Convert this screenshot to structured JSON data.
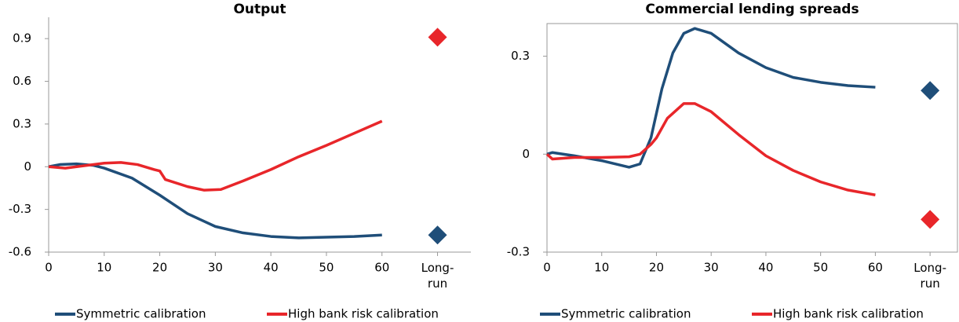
{
  "chart_data": [
    {
      "type": "line",
      "title": "Output",
      "xlim": [
        0,
        76
      ],
      "xticks": [
        0,
        10,
        20,
        30,
        40,
        50,
        60,
        {
          "value": 70,
          "label": "Long-run"
        }
      ],
      "ylim": [
        -0.6,
        1.05
      ],
      "yticks": [
        -0.6,
        -0.3,
        0,
        0.3,
        0.6,
        0.9
      ],
      "series": [
        {
          "name": "Symmetric calibration",
          "color": "#1f4e79",
          "x": [
            0,
            2,
            5,
            8,
            10,
            15,
            20,
            25,
            30,
            35,
            40,
            45,
            50,
            55,
            60
          ],
          "values": [
            0,
            0.015,
            0.02,
            0.01,
            -0.01,
            -0.08,
            -0.2,
            -0.33,
            -0.42,
            -0.465,
            -0.49,
            -0.5,
            -0.495,
            -0.49,
            -0.48
          ],
          "long_run": {
            "x": 70,
            "value": -0.48
          }
        },
        {
          "name": "High bank risk calibration",
          "color": "#e8262a",
          "x": [
            0,
            3,
            6,
            10,
            13,
            16,
            19,
            20,
            21,
            25,
            28,
            31,
            35,
            40,
            45,
            50,
            55,
            60
          ],
          "values": [
            0,
            -0.01,
            0.005,
            0.025,
            0.03,
            0.015,
            -0.02,
            -0.03,
            -0.09,
            -0.14,
            -0.165,
            -0.16,
            -0.1,
            -0.02,
            0.07,
            0.15,
            0.235,
            0.32
          ],
          "long_run": {
            "x": 70,
            "value": 0.91
          }
        }
      ]
    },
    {
      "type": "line",
      "title": "Commercial lending spreads",
      "xlim": [
        0,
        75
      ],
      "xticks": [
        0,
        10,
        20,
        30,
        40,
        50,
        60,
        {
          "value": 70,
          "label": "Long-run"
        }
      ],
      "ylim": [
        -0.3,
        0.4
      ],
      "yticks": [
        -0.3,
        0,
        0.3
      ],
      "series": [
        {
          "name": "Symmetric calibration",
          "color": "#1f4e79",
          "x": [
            0,
            1,
            5,
            10,
            15,
            17,
            19,
            21,
            23,
            25,
            27,
            30,
            35,
            40,
            45,
            50,
            55,
            60
          ],
          "values": [
            0,
            0.005,
            -0.005,
            -0.02,
            -0.04,
            -0.03,
            0.05,
            0.2,
            0.31,
            0.37,
            0.385,
            0.37,
            0.31,
            0.265,
            0.235,
            0.22,
            0.21,
            0.205
          ],
          "long_run": {
            "x": 70,
            "value": 0.195
          }
        },
        {
          "name": "High bank risk calibration",
          "color": "#e8262a",
          "x": [
            0,
            1,
            5,
            10,
            15,
            17,
            19,
            20,
            22,
            25,
            27,
            30,
            35,
            40,
            45,
            50,
            55,
            60
          ],
          "values": [
            0,
            -0.015,
            -0.01,
            -0.01,
            -0.008,
            0,
            0.03,
            0.05,
            0.11,
            0.155,
            0.155,
            0.13,
            0.06,
            -0.005,
            -0.05,
            -0.085,
            -0.11,
            -0.125
          ],
          "long_run": {
            "x": 70,
            "value": -0.2
          }
        }
      ]
    }
  ]
}
